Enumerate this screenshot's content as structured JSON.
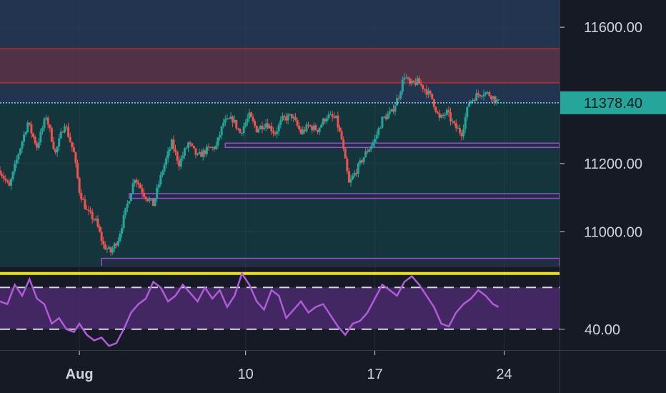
{
  "chart_data": [
    {
      "type": "candlestick",
      "title": "",
      "price_axis_ticks": [
        "11600.00",
        "11200.00",
        "11000.00"
      ],
      "ylim": [
        10900,
        11680
      ],
      "date_axis_ticks": [
        {
          "label": "Aug",
          "day": 0,
          "bold": true
        },
        {
          "label": "10",
          "day": 9
        },
        {
          "label": "17",
          "day": 16
        },
        {
          "label": "24",
          "day": 23
        }
      ],
      "xlim_days": [
        -4.3,
        26
      ],
      "current_price": 11378.4,
      "current_price_label": "11378.40",
      "colors": {
        "up": "#26a69a",
        "down": "#ef5350",
        "price_line": "#7fd3f7",
        "price_tag": "#26a69a"
      },
      "zones": [
        {
          "kind": "resistance",
          "from": 11437,
          "to": 11537,
          "color": "#c92a2a"
        },
        {
          "kind": "support",
          "from": 11250,
          "to": 11260,
          "x_start_day": 7.9,
          "color": "#9c4dcc"
        },
        {
          "kind": "support",
          "from": 11098,
          "to": 11112,
          "x_start_day": 2.7,
          "color": "#9c4dcc"
        },
        {
          "kind": "support",
          "from": 10893,
          "to": 10922,
          "x_start_day": 1.2,
          "color": "#9c4dcc"
        }
      ],
      "price_path": [
        [
          -4.3,
          11180
        ],
        [
          -3.8,
          11130
        ],
        [
          -3.3,
          11230
        ],
        [
          -2.8,
          11320
        ],
        [
          -2.3,
          11250
        ],
        [
          -1.8,
          11340
        ],
        [
          -1.3,
          11230
        ],
        [
          -0.8,
          11320
        ],
        [
          -0.3,
          11230
        ],
        [
          0.0,
          11120
        ],
        [
          0.4,
          11060
        ],
        [
          0.9,
          11030
        ],
        [
          1.3,
          10960
        ],
        [
          1.7,
          10940
        ],
        [
          2.1,
          10980
        ],
        [
          2.6,
          11080
        ],
        [
          3.0,
          11160
        ],
        [
          3.5,
          11110
        ],
        [
          4.0,
          11080
        ],
        [
          4.5,
          11180
        ],
        [
          5.0,
          11260
        ],
        [
          5.4,
          11200
        ],
        [
          5.9,
          11260
        ],
        [
          6.4,
          11220
        ],
        [
          6.9,
          11240
        ],
        [
          7.4,
          11250
        ],
        [
          7.8,
          11320
        ],
        [
          8.3,
          11330
        ],
        [
          8.7,
          11290
        ],
        [
          9.2,
          11340
        ],
        [
          9.6,
          11300
        ],
        [
          10.1,
          11320
        ],
        [
          10.6,
          11290
        ],
        [
          11.0,
          11330
        ],
        [
          11.5,
          11340
        ],
        [
          12.0,
          11290
        ],
        [
          12.4,
          11310
        ],
        [
          12.9,
          11300
        ],
        [
          13.4,
          11340
        ],
        [
          13.9,
          11330
        ],
        [
          14.2,
          11270
        ],
        [
          14.6,
          11140
        ],
        [
          15.0,
          11180
        ],
        [
          15.5,
          11230
        ],
        [
          16.0,
          11270
        ],
        [
          16.4,
          11330
        ],
        [
          16.9,
          11350
        ],
        [
          17.3,
          11400
        ],
        [
          17.6,
          11460
        ],
        [
          17.9,
          11430
        ],
        [
          18.3,
          11440
        ],
        [
          18.7,
          11420
        ],
        [
          19.1,
          11390
        ],
        [
          19.5,
          11330
        ],
        [
          19.9,
          11350
        ],
        [
          20.3,
          11310
        ],
        [
          20.7,
          11290
        ],
        [
          21.1,
          11380
        ],
        [
          21.5,
          11400
        ],
        [
          21.9,
          11410
        ],
        [
          22.3,
          11400
        ],
        [
          22.7,
          11378
        ]
      ]
    },
    {
      "type": "line",
      "indicator": "oscillator",
      "tick_labels": [
        "40.00"
      ],
      "ylim": [
        25,
        85
      ],
      "levels": {
        "top": 80,
        "upper_band": 70,
        "lower_band": 40,
        "label_level": 40
      },
      "colors": {
        "line": "#b05bd8",
        "band_fill": "#4a2a6e",
        "top_line": "#f0e40c",
        "band_lines": "#d8d8e0"
      },
      "series": [
        {
          "x": [
            -4.3,
            -3.9,
            -3.5,
            -3.1,
            -2.7,
            -2.3,
            -1.9,
            -1.5,
            -1.1,
            -0.7,
            -0.3,
            0.0,
            0.4,
            0.8,
            1.2,
            1.6,
            2.0,
            2.4,
            2.8,
            3.2,
            3.6,
            4.0,
            4.4,
            4.8,
            5.2,
            5.6,
            6.0,
            6.4,
            6.8,
            7.2,
            7.6,
            8.0,
            8.4,
            8.8,
            9.2,
            9.6,
            10.0,
            10.4,
            10.8,
            11.2,
            11.6,
            12.0,
            12.4,
            12.8,
            13.2,
            13.6,
            14.0,
            14.4,
            14.8,
            15.2,
            15.6,
            16.0,
            16.4,
            16.8,
            17.2,
            17.6,
            18.0,
            18.4,
            18.8,
            19.2,
            19.6,
            20.0,
            20.4,
            20.8,
            21.2,
            21.6,
            22.0,
            22.4,
            22.7
          ],
          "values": [
            60,
            58,
            72,
            64,
            76,
            62,
            58,
            44,
            48,
            40,
            38,
            44,
            36,
            32,
            34,
            28,
            30,
            40,
            52,
            58,
            62,
            74,
            70,
            60,
            64,
            72,
            66,
            60,
            70,
            62,
            68,
            56,
            64,
            80,
            72,
            60,
            54,
            68,
            64,
            48,
            54,
            60,
            52,
            56,
            58,
            50,
            42,
            36,
            44,
            46,
            52,
            62,
            72,
            68,
            64,
            74,
            78,
            72,
            64,
            56,
            44,
            42,
            52,
            58,
            62,
            68,
            64,
            58,
            56
          ]
        }
      ]
    }
  ]
}
